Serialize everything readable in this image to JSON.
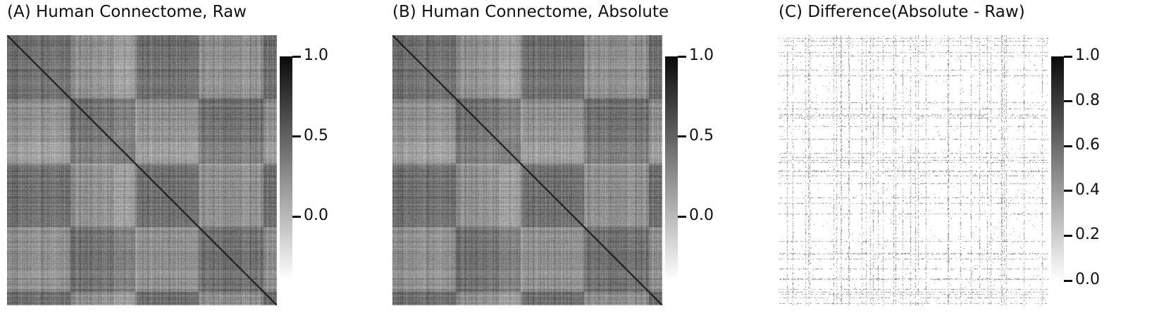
{
  "chart_data": [
    {
      "type": "heatmap",
      "title": "(A) Human Connectome, Raw",
      "colormap": "greys",
      "colorbar": {
        "vmin": -0.4,
        "vmax": 1.0,
        "ticks": [
          1.0,
          0.5,
          0.0
        ],
        "tick_labels": [
          "1.0",
          "0.5",
          "0.0"
        ]
      },
      "matrix": {
        "kind": "symmetric connectivity matrix",
        "diagonal_value": 1.0,
        "axis_labels_shown": false
      }
    },
    {
      "type": "heatmap",
      "title": "(B) Human Connectome, Absolute",
      "colormap": "greys",
      "colorbar": {
        "vmin": -0.4,
        "vmax": 1.0,
        "ticks": [
          1.0,
          0.5,
          0.0
        ],
        "tick_labels": [
          "1.0",
          "0.5",
          "0.0"
        ]
      },
      "matrix": {
        "kind": "symmetric connectivity matrix",
        "diagonal_value": 1.0,
        "axis_labels_shown": false
      }
    },
    {
      "type": "heatmap",
      "title": "(C) Difference(Absolute - Raw)",
      "colormap": "greys",
      "colorbar": {
        "vmin": 0.0,
        "vmax": 1.0,
        "ticks": [
          1.0,
          0.8,
          0.6,
          0.4,
          0.2,
          0.0
        ],
        "tick_labels": [
          "1.0",
          "0.8",
          "0.6",
          "0.4",
          "0.2",
          "0.0"
        ]
      },
      "matrix": {
        "kind": "sparse difference matrix",
        "axis_labels_shown": false
      }
    }
  ],
  "colors": {
    "colormap_low": "#ffffff",
    "colormap_high": "#0a0a0a",
    "text": "#111111"
  }
}
